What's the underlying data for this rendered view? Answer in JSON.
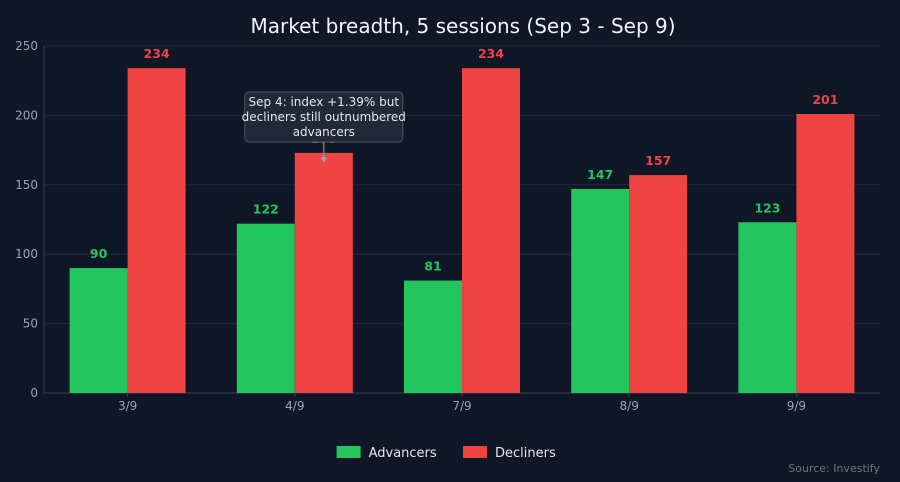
{
  "chart_data": {
    "type": "bar",
    "title": "Market breadth, 5 sessions (Sep 3 - Sep 9)",
    "xlabel": "",
    "ylabel": "",
    "categories": [
      "3/9",
      "4/9",
      "7/9",
      "8/9",
      "9/9"
    ],
    "series": [
      {
        "name": "Advancers",
        "values": [
          90,
          122,
          81,
          147,
          123
        ],
        "color": "#22c55e"
      },
      {
        "name": "Decliners",
        "values": [
          234,
          173,
          234,
          157,
          201
        ],
        "color": "#ef4444"
      }
    ],
    "ylim": [
      0,
      250
    ],
    "yticks": [
      0,
      50,
      100,
      150,
      200,
      250
    ],
    "grid": true,
    "legend_position": "bottom-center",
    "annotations": [
      {
        "text_lines": [
          "Sep 4: index +1.39% but",
          "decliners still outnumbered",
          "advancers"
        ],
        "category": "4/9",
        "series": "Decliners"
      }
    ],
    "source": "Source: Investify"
  },
  "colors": {
    "background": "#0f1626",
    "grid": "#1e293b",
    "axis": "#334155",
    "annotation_fill": "#1f2937",
    "annotation_stroke": "#4b5563"
  }
}
